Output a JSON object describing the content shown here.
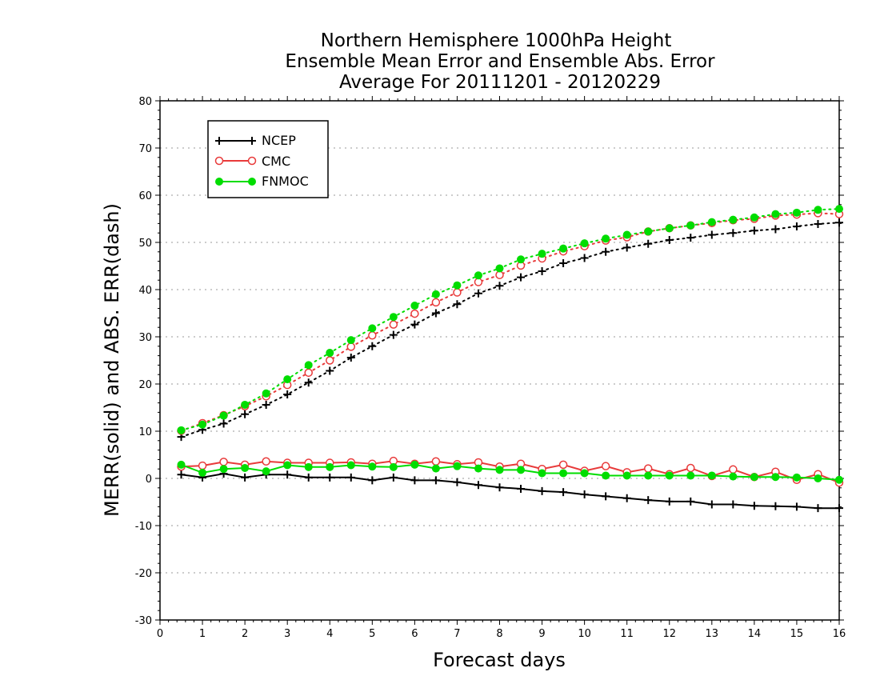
{
  "chart_data": {
    "type": "line",
    "title_lines": [
      "Northern Hemisphere 1000hPa Height",
      "Ensemble Mean Error and Ensemble Abs. Error",
      "Average For 20111201 - 20120229"
    ],
    "xlabel": "Forecast days",
    "ylabel": "MERR(solid) and ABS. ERR(dash)",
    "xlim": [
      0,
      16
    ],
    "ylim": [
      -30,
      80
    ],
    "x_ticks": [
      "0",
      "1",
      "2",
      "3",
      "4",
      "5",
      "6",
      "7",
      "8",
      "9",
      "10",
      "11",
      "12",
      "13",
      "14",
      "15",
      "16"
    ],
    "y_ticks": [
      "-30",
      "-20",
      "-10",
      "0",
      "10",
      "20",
      "30",
      "40",
      "50",
      "60",
      "70",
      "80"
    ],
    "grid": "horizontal dotted",
    "legend_position": "top-left",
    "x": [
      0.5,
      1,
      1.5,
      2,
      2.5,
      3,
      3.5,
      4,
      4.5,
      5,
      5.5,
      6,
      6.5,
      7,
      7.5,
      8,
      8.5,
      9,
      9.5,
      10,
      10.5,
      11,
      11.5,
      12,
      12.5,
      13,
      13.5,
      14,
      14.5,
      15,
      15.5,
      16
    ],
    "series": [
      {
        "name": "NCEP",
        "color": "#000000",
        "marker": "plus",
        "merr": [
          0.8,
          0.2,
          1.0,
          0.2,
          0.8,
          0.8,
          0.2,
          0.2,
          0.2,
          -0.4,
          0.2,
          -0.4,
          -0.4,
          -0.8,
          -1.4,
          -1.9,
          -2.2,
          -2.7,
          -2.9,
          -3.4,
          -3.8,
          -4.2,
          -4.6,
          -4.9,
          -4.9,
          -5.5,
          -5.5,
          -5.8,
          -5.9,
          -6.0,
          -6.3,
          -6.3
        ],
        "abs_err": [
          8.8,
          10.3,
          11.6,
          13.6,
          15.6,
          17.8,
          20.3,
          22.8,
          25.6,
          28.0,
          30.4,
          32.6,
          35.0,
          36.9,
          39.2,
          40.8,
          42.6,
          43.9,
          45.6,
          46.7,
          48.0,
          48.9,
          49.7,
          50.5,
          51.0,
          51.6,
          52.0,
          52.5,
          52.8,
          53.4,
          53.9,
          54.2
        ]
      },
      {
        "name": "CMC",
        "color": "#e83a3a",
        "marker": "open-circle",
        "merr": [
          2.5,
          2.7,
          3.5,
          2.9,
          3.6,
          3.3,
          3.3,
          3.3,
          3.4,
          3.1,
          3.7,
          3.1,
          3.6,
          3.0,
          3.4,
          2.5,
          3.1,
          2.0,
          2.9,
          1.6,
          2.6,
          1.3,
          2.1,
          0.9,
          2.2,
          0.5,
          1.9,
          0.3,
          1.4,
          -0.3,
          0.9,
          -0.9
        ],
        "abs_err": [
          10.1,
          11.7,
          13.4,
          15.3,
          17.4,
          19.8,
          22.4,
          25.0,
          27.9,
          30.3,
          32.6,
          34.9,
          37.3,
          39.4,
          41.6,
          43.1,
          45.1,
          46.6,
          48.1,
          49.2,
          50.4,
          51.1,
          52.3,
          53.0,
          53.6,
          54.1,
          54.7,
          55.0,
          55.7,
          55.9,
          56.2,
          56.0
        ]
      },
      {
        "name": "FNMOC",
        "color": "#00dd00",
        "marker": "filled-circle",
        "merr": [
          2.9,
          1.2,
          2.0,
          2.2,
          1.5,
          2.8,
          2.4,
          2.4,
          2.8,
          2.5,
          2.4,
          2.9,
          2.1,
          2.6,
          2.1,
          1.8,
          1.8,
          1.1,
          1.1,
          1.1,
          0.6,
          0.6,
          0.6,
          0.6,
          0.6,
          0.6,
          0.4,
          0.3,
          0.3,
          0.2,
          0.0,
          -0.3
        ],
        "abs_err": [
          10.2,
          11.4,
          13.3,
          15.6,
          18.0,
          21.0,
          24.0,
          26.6,
          29.3,
          31.8,
          34.2,
          36.6,
          39.0,
          40.9,
          43.0,
          44.5,
          46.4,
          47.6,
          48.7,
          49.8,
          50.8,
          51.6,
          52.3,
          53.0,
          53.6,
          54.3,
          54.8,
          55.3,
          56.0,
          56.3,
          56.9,
          57.1
        ]
      }
    ]
  }
}
